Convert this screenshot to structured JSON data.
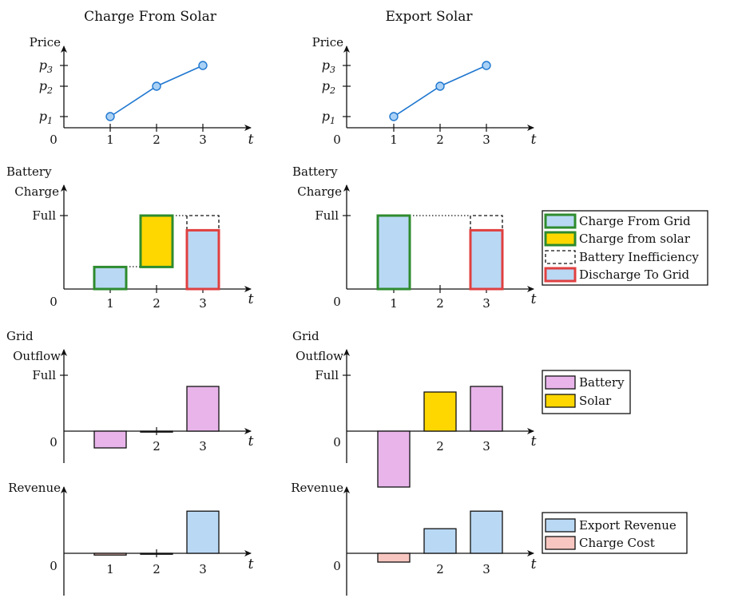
{
  "columns": [
    {
      "id": "charge_from_solar",
      "title": "Charge From Solar"
    },
    {
      "id": "export_solar",
      "title": "Export Solar"
    }
  ],
  "axes": {
    "price_ylabel": "Price",
    "battery_ylabel_1": "Battery",
    "battery_ylabel_2": "Charge",
    "grid_ylabel_1": "Grid",
    "grid_ylabel_2": "Outflow",
    "revenue_ylabel": "Revenue",
    "t_label": "t",
    "origin": "0",
    "full_label": "Full",
    "x_ticks": [
      "1",
      "2",
      "3"
    ],
    "price_ticks": [
      {
        "p": "p",
        "sub": "1"
      },
      {
        "p": "p",
        "sub": "2"
      },
      {
        "p": "p",
        "sub": "3"
      }
    ]
  },
  "legends": {
    "battery": [
      "Charge From Grid",
      "Charge from solar",
      "Battery Inefficiency",
      "Discharge To Grid"
    ],
    "grid": [
      "Battery",
      "Solar"
    ],
    "revenue": [
      "Export Revenue",
      "Charge Cost"
    ]
  },
  "colors": {
    "line": "#1f77d0",
    "marker": "#a9d1f5",
    "blue_fill": "#b9d8f4",
    "yellow_fill": "#ffd700",
    "pink_fill": "#e8b4ea",
    "salmon_fill": "#f8c6c0",
    "green_edge": "#2e8b2e",
    "red_edge": "#e04040"
  },
  "chart_data": [
    {
      "panel": "price",
      "column": "Charge From Solar",
      "type": "line",
      "x": [
        1,
        2,
        3
      ],
      "y": [
        1,
        2,
        3
      ],
      "y_tick_labels": [
        "p1",
        "p2",
        "p3"
      ],
      "xlabel": "t",
      "ylabel": "Price"
    },
    {
      "panel": "price",
      "column": "Export Solar",
      "type": "line",
      "x": [
        1,
        2,
        3
      ],
      "y": [
        1,
        2,
        3
      ],
      "y_tick_labels": [
        "p1",
        "p2",
        "p3"
      ],
      "xlabel": "t",
      "ylabel": "Price"
    },
    {
      "panel": "battery_charge",
      "column": "Charge From Solar",
      "type": "bar",
      "full": 1.0,
      "bars": [
        {
          "t": 1,
          "bottom": 0.0,
          "top": 0.3,
          "kind": "Charge From Grid"
        },
        {
          "t": 2,
          "bottom": 0.3,
          "top": 1.0,
          "kind": "Charge from solar"
        },
        {
          "t": 3,
          "bottom": 0.0,
          "top": 0.8,
          "kind": "Discharge To Grid",
          "inefficiency_top": 1.0
        }
      ]
    },
    {
      "panel": "battery_charge",
      "column": "Export Solar",
      "type": "bar",
      "full": 1.0,
      "bars": [
        {
          "t": 1,
          "bottom": 0.0,
          "top": 1.0,
          "kind": "Charge From Grid"
        },
        {
          "t": 3,
          "bottom": 0.0,
          "top": 0.8,
          "kind": "Discharge To Grid",
          "inefficiency_top": 1.0
        }
      ]
    },
    {
      "panel": "grid_outflow",
      "column": "Charge From Solar",
      "type": "bar",
      "full": 1.0,
      "bars": [
        {
          "t": 1,
          "value": -0.3,
          "kind": "Battery"
        },
        {
          "t": 2,
          "value": 0.0,
          "kind": "Solar"
        },
        {
          "t": 3,
          "value": 0.8,
          "kind": "Battery"
        }
      ]
    },
    {
      "panel": "grid_outflow",
      "column": "Export Solar",
      "type": "bar",
      "full": 1.0,
      "bars": [
        {
          "t": 1,
          "value": -1.0,
          "kind": "Battery"
        },
        {
          "t": 2,
          "value": 0.7,
          "kind": "Solar"
        },
        {
          "t": 3,
          "value": 0.8,
          "kind": "Battery"
        }
      ]
    },
    {
      "panel": "revenue",
      "column": "Charge From Solar",
      "type": "bar",
      "bars": [
        {
          "t": 1,
          "value": -0.1,
          "kind": "Charge Cost"
        },
        {
          "t": 2,
          "value": 0.0,
          "kind": "Export Revenue"
        },
        {
          "t": 3,
          "value": 2.4,
          "kind": "Export Revenue"
        }
      ]
    },
    {
      "panel": "revenue",
      "column": "Export Solar",
      "type": "bar",
      "bars": [
        {
          "t": 1,
          "value": -0.5,
          "kind": "Charge Cost"
        },
        {
          "t": 2,
          "value": 1.4,
          "kind": "Export Revenue"
        },
        {
          "t": 3,
          "value": 2.4,
          "kind": "Export Revenue"
        }
      ]
    }
  ]
}
